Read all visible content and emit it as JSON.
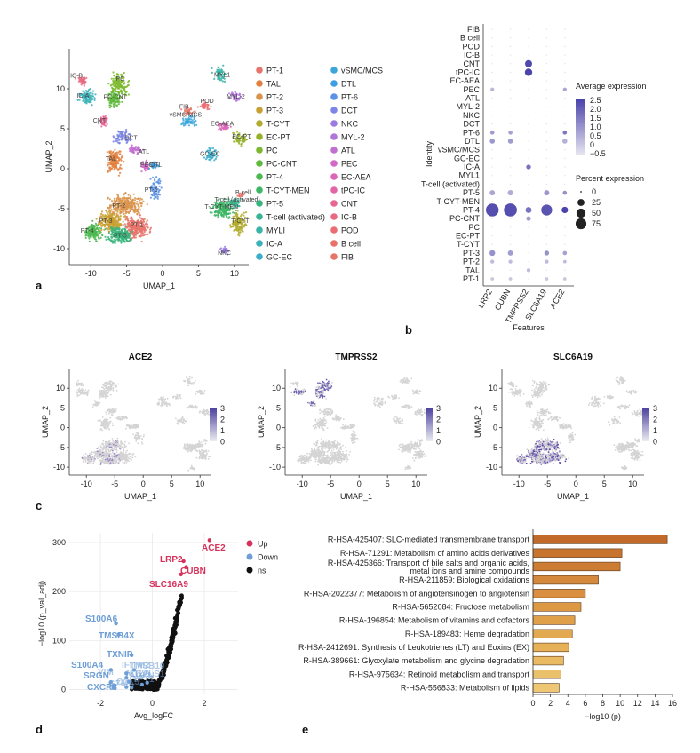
{
  "panels": {
    "a": "a",
    "b": "b",
    "c": "c",
    "d": "d",
    "e": "e"
  },
  "chart_data": [
    {
      "id": "a",
      "type": "scatter",
      "title": "",
      "xlabel": "UMAP_1",
      "ylabel": "UMAP_2",
      "xticks": [
        "-10",
        "-5",
        "0",
        "5",
        "10"
      ],
      "yticks": [
        "10",
        "5",
        "0",
        "-5",
        "-10"
      ],
      "xlim": [
        -13,
        12
      ],
      "ylim": [
        -12,
        15
      ],
      "legend": [
        {
          "name": "PT-1",
          "color": "#e8746b"
        },
        {
          "name": "TAL",
          "color": "#e2813f"
        },
        {
          "name": "PT-2",
          "color": "#d9934b"
        },
        {
          "name": "PT-3",
          "color": "#c9a032"
        },
        {
          "name": "T-CYT",
          "color": "#b1ab2f"
        },
        {
          "name": "EC-PT",
          "color": "#95b12a"
        },
        {
          "name": "PC",
          "color": "#7eb82e"
        },
        {
          "name": "PC-CNT",
          "color": "#5fb93c"
        },
        {
          "name": "PT-4",
          "color": "#4cb84f"
        },
        {
          "name": "T-CYT-MEN",
          "color": "#3db665"
        },
        {
          "name": "PT-5",
          "color": "#38b57c"
        },
        {
          "name": "T-cell (activated)",
          "color": "#37b592"
        },
        {
          "name": "MYLI",
          "color": "#39b4a6"
        },
        {
          "name": "IC-A",
          "color": "#39b2b9"
        },
        {
          "name": "GC-EC",
          "color": "#3aaecb"
        },
        {
          "name": "vSMC/MCS",
          "color": "#3ca6da"
        },
        {
          "name": "DTL",
          "color": "#3f9de2"
        },
        {
          "name": "PT-6",
          "color": "#5b92e6"
        },
        {
          "name": "DCT",
          "color": "#7d86e4"
        },
        {
          "name": "NKC",
          "color": "#9a7ce0"
        },
        {
          "name": "MYL-2",
          "color": "#b074da"
        },
        {
          "name": "ATL",
          "color": "#c26fd2"
        },
        {
          "name": "PEC",
          "color": "#d06ac6"
        },
        {
          "name": "EC-AEA",
          "color": "#db66b7"
        },
        {
          "name": "tPC-IC",
          "color": "#e265a6"
        },
        {
          "name": "CNT",
          "color": "#e66694"
        },
        {
          "name": "IC-B",
          "color": "#e86a82"
        },
        {
          "name": "POD",
          "color": "#e96d72"
        },
        {
          "name": "B cell",
          "color": "#e8716a"
        },
        {
          "name": "FIB",
          "color": "#e57568"
        }
      ],
      "cluster_labels": [
        {
          "text": "IC-B",
          "x": -12.0,
          "y": 11.4
        },
        {
          "text": "IC-A",
          "x": -11.1,
          "y": 8.9
        },
        {
          "text": "PC",
          "x": -5.9,
          "y": 11.0
        },
        {
          "text": "PC-CNT",
          "x": -6.6,
          "y": 8.7
        },
        {
          "text": "CNT",
          "x": -8.8,
          "y": 5.8
        },
        {
          "text": "DCT",
          "x": -4.4,
          "y": 3.6
        },
        {
          "text": "ATL",
          "x": -2.6,
          "y": 1.9
        },
        {
          "text": "TAL",
          "x": -7.2,
          "y": 1.0
        },
        {
          "text": "PEC",
          "x": -2.2,
          "y": 0.2
        },
        {
          "text": "DTL",
          "x": -0.9,
          "y": 0.2
        },
        {
          "text": "MYL1",
          "x": 8.3,
          "y": 11.5
        },
        {
          "text": "MYL-2",
          "x": 10.2,
          "y": 8.8
        },
        {
          "text": "FIB",
          "x": 3.0,
          "y": 7.5
        },
        {
          "text": "POD",
          "x": 6.2,
          "y": 8.2
        },
        {
          "text": "vSMC/MCS",
          "x": 3.2,
          "y": 6.5
        },
        {
          "text": "EC-AEA",
          "x": 8.3,
          "y": 5.4
        },
        {
          "text": "EC-PT",
          "x": 11.0,
          "y": 3.8
        },
        {
          "text": "GC-EC",
          "x": 6.6,
          "y": 1.6
        },
        {
          "text": "PT-6",
          "x": -1.6,
          "y": -2.9
        },
        {
          "text": "B cell",
          "x": 11.2,
          "y": -3.2
        },
        {
          "text": "T-cell (activated)",
          "x": 10.4,
          "y": -4.1
        },
        {
          "text": "T-CYT-MEN",
          "x": 8.2,
          "y": -5.0
        },
        {
          "text": "T-CYT",
          "x": 10.8,
          "y": -6.8
        },
        {
          "text": "PT-2",
          "x": -6.1,
          "y": -4.9
        },
        {
          "text": "PT-3",
          "x": -7.9,
          "y": -6.8
        },
        {
          "text": "PT-1",
          "x": -3.6,
          "y": -7.3
        },
        {
          "text": "PT-4",
          "x": -10.5,
          "y": -8.0
        },
        {
          "text": "PT-5",
          "x": -5.9,
          "y": -8.6
        },
        {
          "text": "NKC",
          "x": 8.6,
          "y": -10.8
        }
      ]
    },
    {
      "id": "b",
      "type": "dot",
      "xlabel": "Features",
      "ylabel": "Identity",
      "features": [
        "LRP2",
        "CUBN",
        "TMPRSS2",
        "SLC6A19",
        "ACE2"
      ],
      "identities": [
        "FIB",
        "B cell",
        "POD",
        "IC-B",
        "CNT",
        "tPC-IC",
        "EC-AEA",
        "PEC",
        "ATL",
        "MYL-2",
        "NKC",
        "DCT",
        "PT-6",
        "DTL",
        "vSMC/MCS",
        "GC-EC",
        "IC-A",
        "MYL1",
        "T-cell (activated)",
        "PT-5",
        "T-CYT-MEN",
        "PT-4",
        "PC-CNT",
        "PC",
        "EC-PT",
        "T-CYT",
        "PT-3",
        "PT-2",
        "TAL",
        "PT-1"
      ],
      "pct_matrix": [
        [
          0,
          0,
          0,
          0,
          0
        ],
        [
          0,
          0,
          0,
          0,
          0
        ],
        [
          0,
          0,
          0,
          0,
          0
        ],
        [
          0,
          0,
          0,
          0,
          0
        ],
        [
          0,
          0,
          18,
          0,
          0
        ],
        [
          0,
          0,
          20,
          0,
          0
        ],
        [
          0,
          0,
          0,
          0,
          0
        ],
        [
          3,
          0,
          0,
          0,
          3
        ],
        [
          0,
          0,
          0,
          0,
          0
        ],
        [
          0,
          0,
          0,
          0,
          0
        ],
        [
          0,
          0,
          0,
          0,
          0
        ],
        [
          0,
          0,
          0,
          0,
          0
        ],
        [
          4,
          4,
          0,
          0,
          4
        ],
        [
          7,
          7,
          0,
          0,
          7
        ],
        [
          0,
          0,
          0,
          0,
          0
        ],
        [
          0,
          0,
          0,
          0,
          0
        ],
        [
          0,
          0,
          6,
          0,
          0
        ],
        [
          0,
          0,
          0,
          0,
          0
        ],
        [
          0,
          0,
          0,
          0,
          0
        ],
        [
          8,
          9,
          0,
          8,
          4
        ],
        [
          0,
          0,
          0,
          0,
          0
        ],
        [
          75,
          78,
          12,
          52,
          14
        ],
        [
          0,
          0,
          5,
          0,
          0
        ],
        [
          0,
          0,
          0,
          0,
          0
        ],
        [
          0,
          0,
          0,
          0,
          0
        ],
        [
          0,
          0,
          0,
          0,
          0
        ],
        [
          10,
          8,
          0,
          6,
          4
        ],
        [
          3,
          3,
          0,
          3,
          2
        ],
        [
          0,
          0,
          3,
          0,
          0
        ],
        [
          2,
          2,
          0,
          2,
          2
        ]
      ],
      "expr_matrix": [
        [
          0,
          0,
          0,
          0,
          0
        ],
        [
          0,
          0,
          0,
          0,
          0
        ],
        [
          0,
          0,
          0,
          0,
          0
        ],
        [
          0,
          0,
          0,
          0,
          0
        ],
        [
          0,
          0,
          2.4,
          0,
          0
        ],
        [
          0,
          0,
          2.5,
          0,
          0
        ],
        [
          0,
          0,
          0,
          0,
          0
        ],
        [
          0.3,
          0,
          0,
          0,
          0.6
        ],
        [
          0,
          0,
          0,
          0,
          0
        ],
        [
          0,
          0,
          0,
          0,
          0
        ],
        [
          0,
          0,
          0,
          0,
          0
        ],
        [
          0,
          0,
          0,
          0,
          0
        ],
        [
          0.8,
          0.7,
          0,
          0,
          1.5
        ],
        [
          0.9,
          0.8,
          0,
          0,
          0.4
        ],
        [
          0,
          0,
          0,
          0,
          0
        ],
        [
          0,
          0,
          0,
          0,
          0
        ],
        [
          0,
          0,
          1.6,
          0,
          0
        ],
        [
          0,
          0,
          0,
          0,
          0
        ],
        [
          0,
          0,
          0,
          0,
          0
        ],
        [
          0.6,
          0.5,
          0,
          0.9,
          1.0
        ],
        [
          0,
          0,
          0,
          0,
          0
        ],
        [
          2.3,
          2.3,
          1.6,
          2.2,
          2.5
        ],
        [
          0,
          0,
          0.8,
          0,
          0
        ],
        [
          0,
          0,
          0,
          0,
          0
        ],
        [
          0,
          0,
          0,
          0,
          0
        ],
        [
          0,
          0,
          0,
          0,
          0
        ],
        [
          1.0,
          0.8,
          0,
          1.0,
          0.7
        ],
        [
          0.2,
          0.2,
          0,
          0.2,
          0.2
        ],
        [
          0,
          0,
          0.2,
          0,
          0
        ],
        [
          0,
          0,
          0,
          0,
          0
        ]
      ],
      "legend_expr_title": "Average expression",
      "legend_expr_ticks": [
        "2.5",
        "2.0",
        "1.5",
        "1.0",
        "0.5",
        "0",
        "−0.5"
      ],
      "legend_pct_title": "Percent expression",
      "legend_pct_ticks": [
        "0",
        "25",
        "50",
        "75"
      ]
    },
    {
      "id": "c",
      "type": "scatter",
      "subplots": [
        {
          "title": "ACE2",
          "max": 3,
          "ticks": [
            "3",
            "2",
            "1",
            "0"
          ]
        },
        {
          "title": "TMPRSS2",
          "max": 3,
          "ticks": [
            "3",
            "2",
            "1",
            "0"
          ]
        },
        {
          "title": "SLC6A19",
          "max": 3,
          "ticks": [
            "3",
            "2",
            "1",
            "0"
          ]
        }
      ],
      "xlabel": "UMAP_1",
      "ylabel": "UMAP_2",
      "xticks": [
        "-10",
        "-5",
        "0",
        "5",
        "10"
      ],
      "yticks": [
        "10",
        "5",
        "0",
        "-5",
        "-10"
      ]
    },
    {
      "id": "d",
      "type": "scatter",
      "title": "",
      "xlabel": "Avg_logFC",
      "ylabel": "−log10 (p_val_adj)",
      "xticks": [
        "-2",
        "0",
        "2"
      ],
      "yticks": [
        "0",
        "100",
        "200",
        "300"
      ],
      "xlim": [
        -3.2,
        3.3
      ],
      "ylim": [
        -10,
        320
      ],
      "legend": [
        {
          "name": "Up",
          "color": "#d6315a"
        },
        {
          "name": "Down",
          "color": "#6e9ed6"
        },
        {
          "name": "ns",
          "color": "#111111"
        }
      ],
      "up_labels": [
        {
          "text": "ACE2",
          "x": 2.2,
          "y": 305
        },
        {
          "text": "LRP2",
          "x": 1.2,
          "y": 262
        },
        {
          "text": "CUBN",
          "x": 1.3,
          "y": 250
        },
        {
          "text": "SLC16A9",
          "x": 1.1,
          "y": 235
        }
      ],
      "down_labels": [
        {
          "text": "S100A6",
          "x": -1.4,
          "y": 135
        },
        {
          "text": "TMSB4X",
          "x": -1.3,
          "y": 112
        },
        {
          "text": "TXNIP",
          "x": -0.8,
          "y": 70
        },
        {
          "text": "S100A4",
          "x": -1.6,
          "y": 40
        },
        {
          "text": "TMSB10",
          "x": -1.0,
          "y": 33
        },
        {
          "text": "MT2A",
          "x": -1.0,
          "y": 24
        },
        {
          "text": "TPT1",
          "x": -0.9,
          "y": 16
        },
        {
          "text": "SRGN",
          "x": -1.6,
          "y": 15
        },
        {
          "text": "IFITM2",
          "x": -0.7,
          "y": 40
        },
        {
          "text": "VIM",
          "x": -1.5,
          "y": 8
        },
        {
          "text": "CXCR4",
          "x": -1.5,
          "y": 3
        },
        {
          "text": "GZMA",
          "x": -1.0,
          "y": 5
        },
        {
          "text": "CCL5",
          "x": -0.8,
          "y": 4
        },
        {
          "text": "TAGLN",
          "x": -0.4,
          "y": 10
        },
        {
          "text": "LGALS1",
          "x": -0.2,
          "y": 14
        }
      ],
      "ns_points_summary": "ns points along a curve from (0,0) to (1.1,190), plus cluster near x -0.5 to 0 at y 0-20"
    },
    {
      "id": "e",
      "type": "bar",
      "orientation": "horizontal",
      "xlabel": "−log10 (p)",
      "xticks": [
        "0",
        "2",
        "4",
        "6",
        "8",
        "10",
        "12",
        "14",
        "16"
      ],
      "xlim": [
        0,
        16
      ],
      "categories": [
        "R-HSA-425407: SLC-mediated transmembrane transport",
        "R-HSA-71291: Metabolism of amino acids derivatives",
        "R-HSA-425366: Transport of bile salts and organic acids, metal ions and amine compounds",
        "R-HSA-211859: Biological oxidations",
        "R-HSA-2022377: Metabolism of angiotensinogen to angiotensin",
        "R-HSA-5652084: Fructose metabolism",
        "R-HSA-196854: Metabolism of vitamins and cofactors",
        "R-HSA-189483: Heme degradation",
        "R-HSA-2412691: Synthesis of Leukotrienes (LT) and Eoxins (EX)",
        "R-HSA-389661: Glyoxylate metabolism and glycine degradation",
        "R-HSA-975634: Retinoid metabolism and transport",
        "R-HSA-556833: Metabolism of lipids"
      ],
      "label_lines": [
        [
          "R-HSA-425407: SLC-mediated transmembrane transport"
        ],
        [
          "R-HSA-71291: Metabolism of amino acids derivatives"
        ],
        [
          "R-HSA-425366: Transport of bile salts and organic acids,",
          "metal ions and amine compounds"
        ],
        [
          "R-HSA-211859: Biological oxidations"
        ],
        [
          "R-HSA-2022377: Metabolism of angiotensinogen to angiotensin"
        ],
        [
          "R-HSA-5652084: Fructose metabolism"
        ],
        [
          "R-HSA-196854: Metabolism of vitamins and cofactors"
        ],
        [
          "R-HSA-189483: Heme degradation"
        ],
        [
          "R-HSA-2412691: Synthesis of Leukotrienes (LT) and Eoxins (EX)"
        ],
        [
          "R-HSA-389661: Glyoxylate metabolism and glycine degradation"
        ],
        [
          "R-HSA-975634: Retinoid metabolism and transport"
        ],
        [
          "R-HSA-556833: Metabolism of lipids"
        ]
      ],
      "values": [
        15.4,
        10.2,
        10.0,
        7.5,
        6.0,
        5.5,
        4.8,
        4.5,
        4.1,
        3.5,
        3.2,
        3.0
      ],
      "colors": [
        "#c26a2a",
        "#c8742f",
        "#cc7c33",
        "#d4893c",
        "#d98f3f",
        "#dd9844",
        "#e0a04a",
        "#e3a951",
        "#e6b158",
        "#e9ba62",
        "#ebc06b",
        "#eec674"
      ]
    }
  ]
}
